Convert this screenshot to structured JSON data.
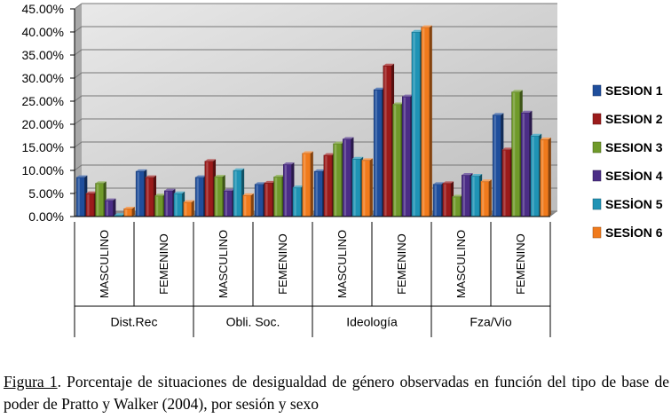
{
  "chart_data": {
    "type": "bar",
    "y_tick_labels": [
      "0.00%",
      "5.00%",
      "10.00%",
      "15.00%",
      "20.00%",
      "25.00%",
      "30.00%",
      "35.00%",
      "40.00%",
      "45.00%"
    ],
    "ylim": [
      0,
      45
    ],
    "unit": "%",
    "grid": true,
    "legend_position": "right",
    "groups": [
      {
        "label": "Dist.Rec",
        "categories": [
          "MASCULINO",
          "FEMENINO"
        ]
      },
      {
        "label": "Obli. Soc.",
        "categories": [
          "MASCULINO",
          "FEMENINO"
        ]
      },
      {
        "label": "Ideología",
        "categories": [
          "MASCULINO",
          "FEMENINO"
        ]
      },
      {
        "label": "Fza/Vio",
        "categories": [
          "MASCULINO",
          "FEMENINO"
        ]
      }
    ],
    "series": [
      {
        "name": "SESION 1",
        "color": "#1f4e9c",
        "values": [
          8.5,
          9.8,
          8.5,
          7.0,
          9.8,
          27.5,
          7.0,
          22.0
        ]
      },
      {
        "name": "SESION 2",
        "color": "#9b1b1b",
        "values": [
          5.0,
          8.5,
          12.0,
          7.3,
          13.3,
          32.7,
          7.2,
          14.5
        ]
      },
      {
        "name": "SESION 3",
        "color": "#6f9a2a",
        "values": [
          7.2,
          4.5,
          8.6,
          8.6,
          15.8,
          24.3,
          4.3,
          27.0
        ]
      },
      {
        "name": "SESİON 4",
        "color": "#4b2d86",
        "values": [
          3.5,
          5.6,
          5.6,
          11.3,
          16.8,
          26.0,
          9.0,
          22.5
        ]
      },
      {
        "name": "SESİON 5",
        "color": "#1f93b5",
        "values": [
          0.3,
          5.0,
          10.0,
          6.3,
          12.5,
          40.0,
          8.8,
          17.5
        ]
      },
      {
        "name": "SESİON 6",
        "color": "#f07a1c",
        "values": [
          1.7,
          3.1,
          4.6,
          13.7,
          12.2,
          41.0,
          7.6,
          16.7
        ]
      }
    ]
  },
  "caption": {
    "figure_label": "Figura 1",
    "text": ". Porcentaje de situaciones de desigualdad de género observadas en función del tipo de base de poder de Pratto y Walker (2004), por sesión y sexo"
  }
}
